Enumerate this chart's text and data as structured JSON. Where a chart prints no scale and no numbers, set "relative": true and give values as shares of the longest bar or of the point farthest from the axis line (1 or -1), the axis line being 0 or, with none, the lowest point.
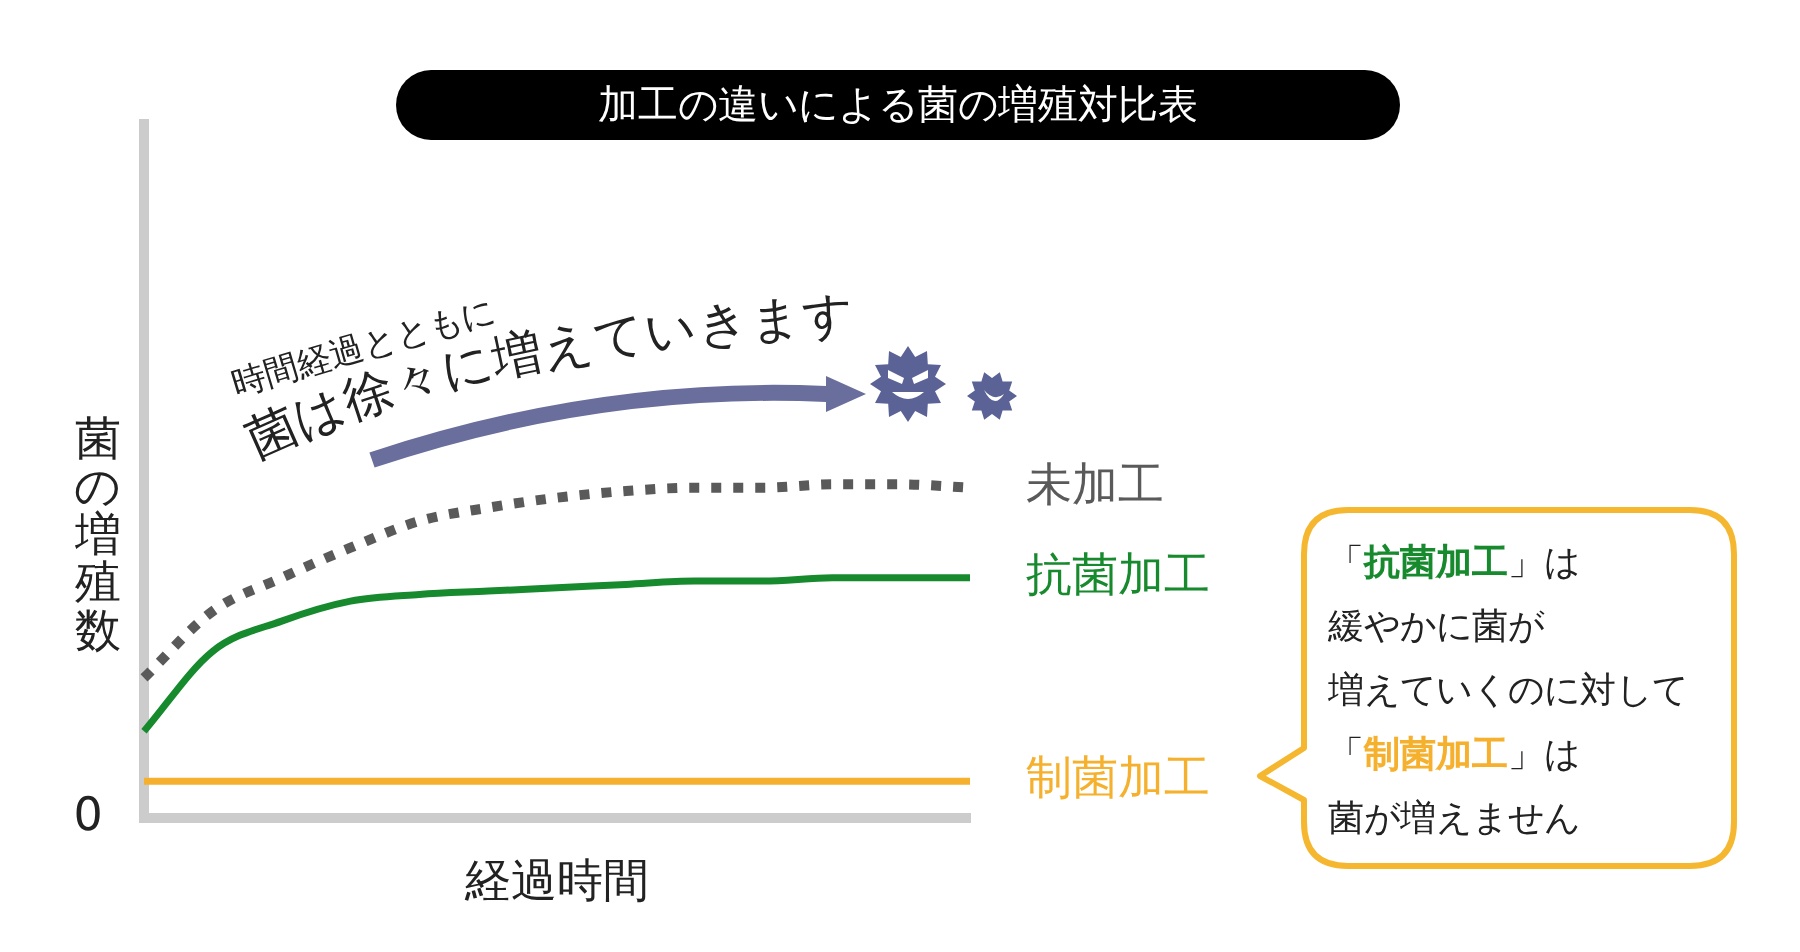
{
  "chart_data": {
    "type": "line",
    "title": "加工の違いによる菌の増殖対比表",
    "xlabel": "経過時間",
    "ylabel": "菌の増殖数",
    "relative": true,
    "categories": [
      null,
      null,
      null,
      null,
      null,
      null,
      null,
      null,
      null,
      null,
      null,
      null,
      null
    ],
    "series": [
      {
        "name": "未加工",
        "color": "#5a5a5a",
        "line_style": "dotted",
        "values": [
          0.42,
          0.62,
          0.72,
          0.81,
          0.89,
          0.93,
          0.96,
          0.98,
          0.99,
          0.99,
          1,
          1,
          0.99
        ]
      },
      {
        "name": "抗菌加工",
        "color": "#178a2e",
        "values": [
          0.26,
          0.5,
          0.59,
          0.65,
          0.67,
          0.68,
          0.69,
          0.7,
          0.71,
          0.71,
          0.72,
          0.72,
          0.72
        ]
      },
      {
        "name": "制菌加工",
        "color": "#f5b02e",
        "values": [
          0.11,
          0.11,
          0.11,
          0.11,
          0.11,
          0.11,
          0.11,
          0.11,
          0.11,
          0.11,
          0.11,
          0.11,
          0.11
        ]
      }
    ],
    "annotations": [
      "0",
      "時間経過とともに菌は徐々に増えていきます",
      "「抗菌加工」は",
      "緩やかに菌が",
      "増えていくのに対して",
      "「制菌加工」は",
      "菌が増えません"
    ]
  }
}
